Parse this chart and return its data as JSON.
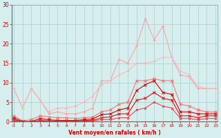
{
  "x": [
    0,
    1,
    2,
    3,
    4,
    5,
    6,
    7,
    8,
    9,
    10,
    11,
    12,
    13,
    14,
    15,
    16,
    17,
    18,
    19,
    20,
    21,
    22,
    23
  ],
  "series": [
    {
      "color": "#FF9999",
      "alpha": 1.0,
      "linewidth": 0.7,
      "marker": "+",
      "markersize": 3,
      "values": [
        8.5,
        3.5,
        8.5,
        5.5,
        2.0,
        2.5,
        2.0,
        2.0,
        2.5,
        3.5,
        10.5,
        10.5,
        16.0,
        15.0,
        19.5,
        26.5,
        21.0,
        24.5,
        16.5,
        12.0,
        11.5,
        8.5,
        8.5,
        8.5
      ]
    },
    {
      "color": "#FFB0B0",
      "alpha": 1.0,
      "linewidth": 0.7,
      "marker": "+",
      "markersize": 3,
      "values": [
        8.5,
        3.5,
        8.5,
        5.5,
        2.5,
        3.5,
        3.5,
        4.0,
        5.0,
        6.5,
        9.5,
        10.5,
        12.0,
        13.0,
        15.0,
        15.0,
        15.5,
        16.5,
        16.5,
        13.0,
        12.0,
        9.0,
        8.5,
        8.5
      ]
    },
    {
      "color": "#FF6666",
      "alpha": 1.0,
      "linewidth": 0.7,
      "marker": "x",
      "markersize": 2.5,
      "values": [
        1.5,
        0.2,
        0.5,
        1.5,
        1.2,
        1.0,
        1.0,
        0.8,
        1.0,
        1.2,
        2.5,
        3.0,
        4.5,
        5.0,
        10.5,
        10.5,
        11.0,
        10.5,
        10.5,
        4.5,
        4.0,
        3.0,
        2.5,
        2.5
      ]
    },
    {
      "color": "#CC0000",
      "alpha": 1.0,
      "linewidth": 0.8,
      "marker": "x",
      "markersize": 2.5,
      "values": [
        1.0,
        0.0,
        0.0,
        0.8,
        0.5,
        0.3,
        0.3,
        0.3,
        0.5,
        0.7,
        1.8,
        2.0,
        3.0,
        3.5,
        8.0,
        9.5,
        10.5,
        7.5,
        7.0,
        2.5,
        2.5,
        2.0,
        2.0,
        2.0
      ]
    },
    {
      "color": "#DD1111",
      "alpha": 1.0,
      "linewidth": 0.8,
      "marker": "x",
      "markersize": 2.5,
      "values": [
        0.5,
        0.0,
        0.0,
        0.3,
        0.2,
        0.1,
        0.1,
        0.1,
        0.3,
        0.3,
        1.0,
        1.2,
        2.0,
        2.0,
        5.5,
        6.0,
        7.5,
        6.0,
        5.5,
        1.5,
        1.5,
        1.0,
        1.5,
        1.5
      ]
    },
    {
      "color": "#EE3333",
      "alpha": 1.0,
      "linewidth": 0.7,
      "marker": "x",
      "markersize": 2,
      "values": [
        0.2,
        0.0,
        0.0,
        0.2,
        0.1,
        0.1,
        0.1,
        0.1,
        0.1,
        0.2,
        0.5,
        0.5,
        1.0,
        1.0,
        3.0,
        3.5,
        5.0,
        4.0,
        3.5,
        0.8,
        0.8,
        0.5,
        0.8,
        0.8
      ]
    }
  ],
  "xlabel": "Vent moyen/en rafales ( km/h )",
  "xlim_min": -0.2,
  "xlim_max": 23.2,
  "ylim": [
    0,
    30
  ],
  "yticks": [
    0,
    5,
    10,
    15,
    20,
    25,
    30
  ],
  "xticks": [
    0,
    1,
    2,
    3,
    4,
    5,
    6,
    7,
    8,
    9,
    10,
    11,
    12,
    13,
    14,
    15,
    16,
    17,
    18,
    19,
    20,
    21,
    22,
    23
  ],
  "bg_color": "#D6EEEE",
  "grid_color": "#AACCCC",
  "text_color": "#CC0000"
}
